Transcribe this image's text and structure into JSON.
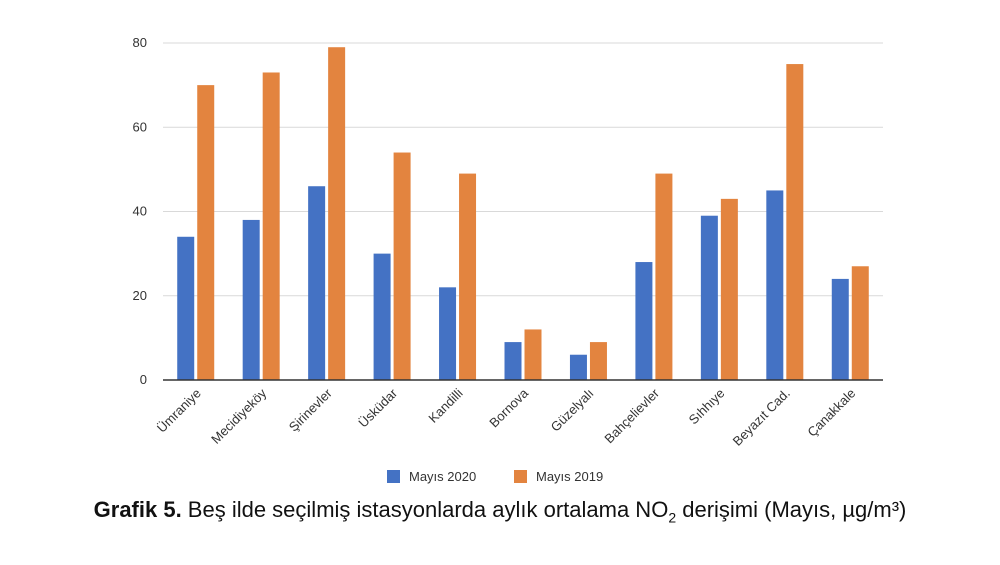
{
  "chart_data": {
    "type": "bar",
    "categories": [
      "Ümraniye",
      "Mecidiyeköy",
      "Şirinevler",
      "Üsküdar",
      "Kandilli",
      "Bornova",
      "Güzelyalı",
      "Bahçelievler",
      "Sıhhıye",
      "Beyazıt Cad.",
      "Çanakkale"
    ],
    "series": [
      {
        "name": "Mayıs 2020",
        "color": "#4472C4",
        "values": [
          34,
          38,
          46,
          30,
          22,
          9,
          6,
          28,
          39,
          45,
          24
        ]
      },
      {
        "name": "Mayıs 2019",
        "color": "#E3843F",
        "values": [
          70,
          73,
          79,
          54,
          49,
          12,
          9,
          49,
          43,
          75,
          27
        ]
      }
    ],
    "ylim": [
      0,
      80
    ],
    "yticks": [
      0,
      20,
      40,
      60,
      80
    ],
    "grid": true,
    "legend_position": "bottom"
  },
  "caption": {
    "label": "Grafik 5.",
    "text_before_sub": " Beş ilde seçilmiş istasyonlarda aylık ortalama NO",
    "subscript": "2",
    "text_after_sub": " derişimi (Mayıs, µg/m³)"
  }
}
